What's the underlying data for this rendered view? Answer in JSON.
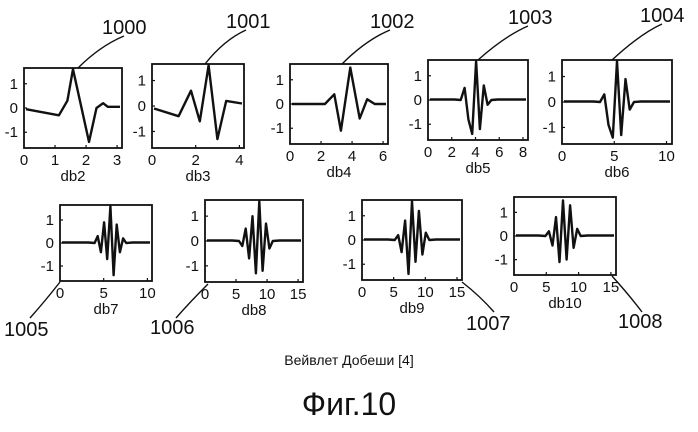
{
  "caption": "Вейвлет Добеши [4]",
  "figure_label": "Фиг.10",
  "y_ticks": [
    "1",
    "0",
    "-1"
  ],
  "panels": [
    {
      "id": "db2",
      "ref": "1000",
      "x_ticks": [
        "0",
        "1",
        "2",
        "3"
      ]
    },
    {
      "id": "db3",
      "ref": "1001",
      "x_ticks": [
        "0",
        "2",
        "4"
      ]
    },
    {
      "id": "db4",
      "ref": "1002",
      "x_ticks": [
        "0",
        "2",
        "4",
        "6"
      ]
    },
    {
      "id": "db5",
      "ref": "1003",
      "x_ticks": [
        "0",
        "2",
        "4",
        "6",
        "8"
      ]
    },
    {
      "id": "db6",
      "ref": "1004",
      "x_ticks": [
        "0",
        "5",
        "10"
      ]
    },
    {
      "id": "db7",
      "ref": "1005",
      "x_ticks": [
        "0",
        "5",
        "10"
      ]
    },
    {
      "id": "db8",
      "ref": "1006",
      "x_ticks": [
        "0",
        "5",
        "10",
        "15"
      ]
    },
    {
      "id": "db9",
      "ref": "1007",
      "x_ticks": [
        "0",
        "5",
        "10",
        "15"
      ]
    },
    {
      "id": "db10",
      "ref": "1008",
      "x_ticks": [
        "0",
        "5",
        "10",
        "15"
      ]
    }
  ]
}
